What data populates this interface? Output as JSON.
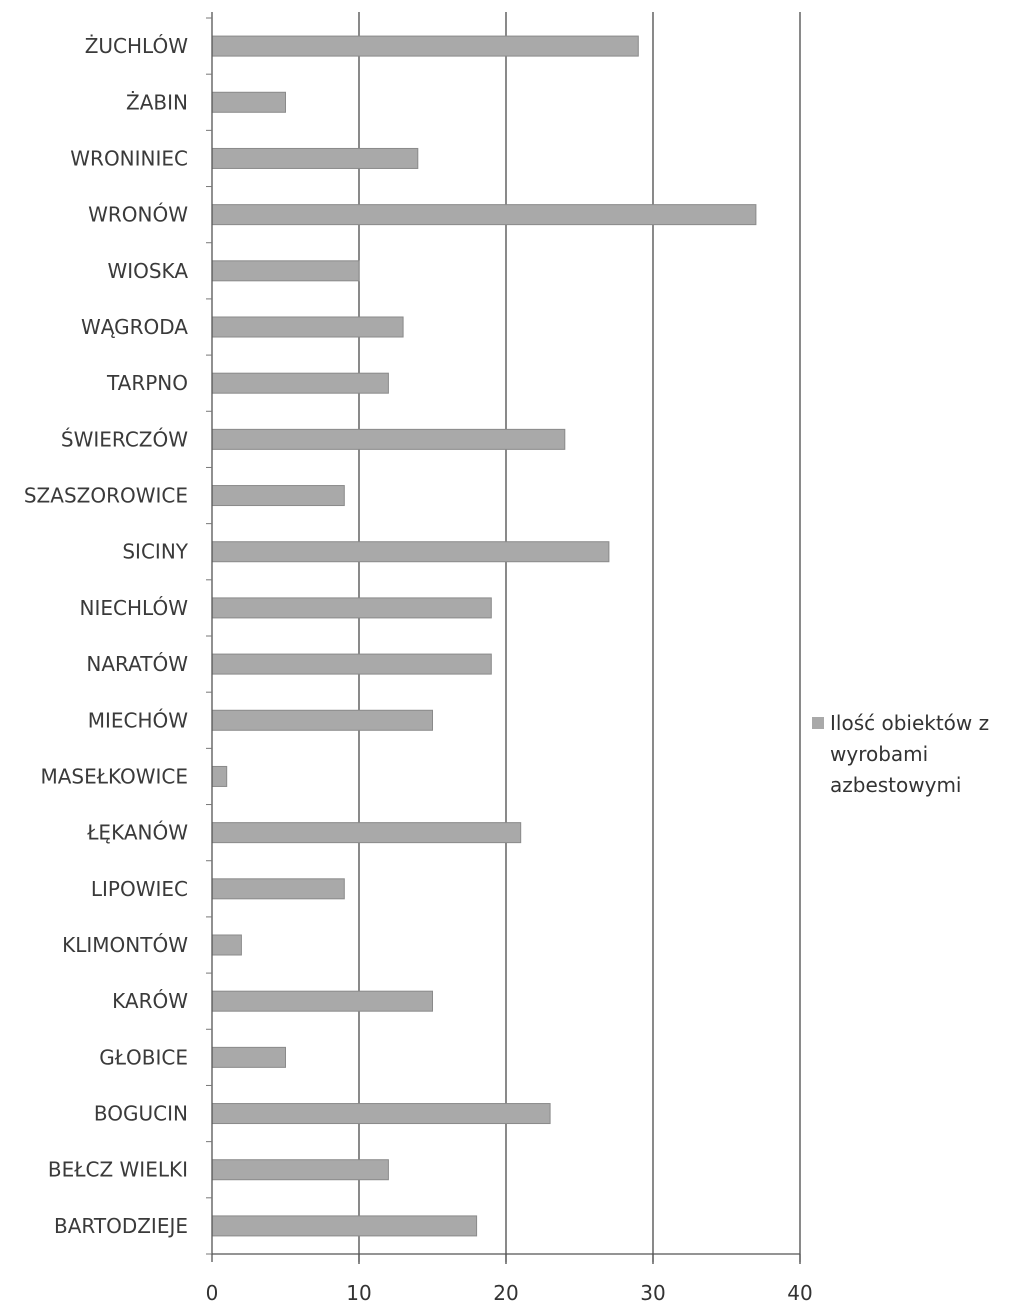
{
  "chart_data": {
    "type": "bar",
    "orientation": "horizontal",
    "categories": [
      "ŻUCHLÓW",
      "ŻABIN",
      "WRONINIEC",
      "WRONÓW",
      "WIOSKA",
      "WĄGRODA",
      "TARPNO",
      "ŚWIERCZÓW",
      "SZASZOROWICE",
      "SICINY",
      "NIECHLÓW",
      "NARATÓW",
      "MIECHÓW",
      "MASEŁKOWICE",
      "ŁĘKANÓW",
      "LIPOWIEC",
      "KLIMONTÓW",
      "KARÓW",
      "GŁOBICE",
      "BOGUCIN",
      "BEŁCZ WIELKI",
      "BARTODZIEJE"
    ],
    "series": [
      {
        "name": "Ilość obiektów z wyrobami azbestowymi",
        "values": [
          29,
          5,
          14,
          37,
          10,
          13,
          12,
          24,
          9,
          27,
          19,
          19,
          15,
          1,
          21,
          9,
          2,
          15,
          5,
          23,
          12,
          18
        ],
        "color": "#a9a9a9"
      }
    ],
    "title": "",
    "xlabel": "",
    "ylabel": "",
    "xlim": [
      0,
      40
    ],
    "x_ticks": [
      "0",
      "10",
      "20",
      "30",
      "40"
    ],
    "grid": "vertical major gridlines",
    "legend_position": "right"
  }
}
